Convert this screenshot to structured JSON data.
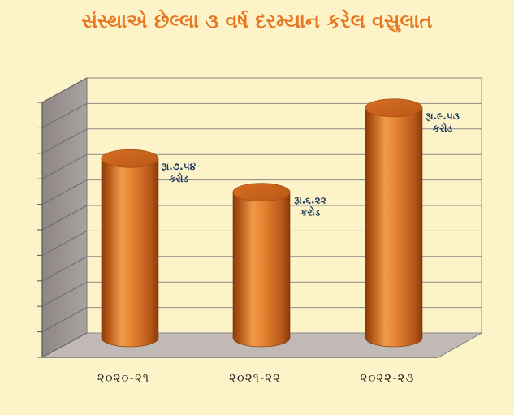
{
  "chart_data": {
    "type": "bar",
    "title": "સંસ્થાએ છેલ્લા ૩ વર્ષ દરમ્યાન કરેલ વસુલાત",
    "categories": [
      "૨૦૨૦-૨૧",
      "૨૦૨૧-૨૨",
      "૨૦૨૨-૨૩"
    ],
    "values": [
      7.54,
      6.22,
      9.53
    ],
    "data_labels": [
      [
        "રૂા.૭.૫૪",
        "કરોડ"
      ],
      [
        "રૂા.૬.૨૨",
        "કરોડ"
      ],
      [
        "રૂા.૯.૫૩",
        "કરોડ"
      ]
    ],
    "ylim": [
      0,
      10
    ],
    "grid": true,
    "bar_style": "3d-cylinder",
    "colors": {
      "bar": "#e07b2a",
      "background": "#fdf3c8",
      "title": "#e87722",
      "data_label": "#17375e"
    }
  }
}
